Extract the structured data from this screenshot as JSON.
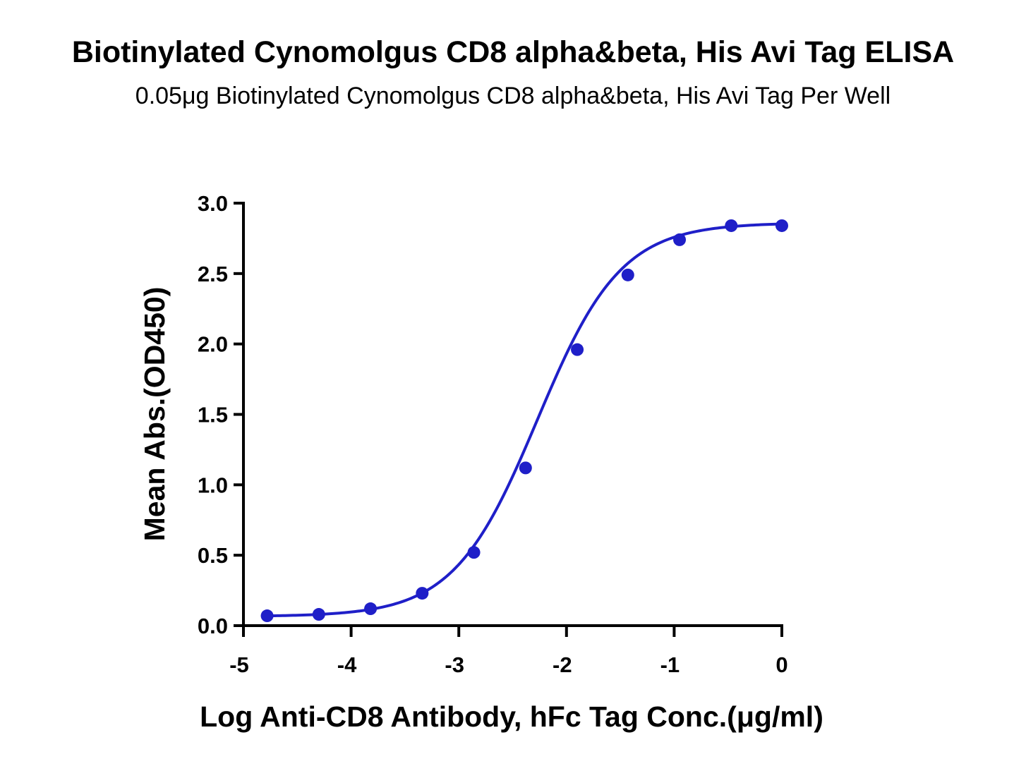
{
  "chart_data": {
    "type": "scatter",
    "title": "Biotinylated Cynomolgus CD8 alpha&beta, His Avi Tag ELISA",
    "subtitle": "0.05μg Biotinylated Cynomolgus CD8 alpha&beta, His Avi Tag Per Well",
    "xlabel": "Log Anti-CD8 Antibody, hFc Tag Conc.(μg/ml)",
    "ylabel": "Mean Abs.(OD450)",
    "xlim": [
      -5,
      0
    ],
    "ylim": [
      0,
      3.0
    ],
    "x_ticks": [
      "-5",
      "-4",
      "-3",
      "-2",
      "-1",
      "0"
    ],
    "y_ticks": [
      "0.0",
      "0.5",
      "1.0",
      "1.5",
      "2.0",
      "2.5",
      "3.0"
    ],
    "grid": false,
    "legend": "none",
    "color": "#1f1fc8",
    "series": [
      {
        "x": [
          -4.78,
          -4.3,
          -3.82,
          -3.34,
          -2.86,
          -2.38,
          -1.9,
          -1.43,
          -0.95,
          -0.47,
          0.0
        ],
        "y": [
          0.07,
          0.08,
          0.12,
          0.23,
          0.52,
          1.12,
          1.96,
          2.49,
          2.74,
          2.84,
          2.84
        ],
        "fit": "4PL sigmoid",
        "fit_params": {
          "bottom": 0.065,
          "top": 2.86,
          "logEC50": -2.27,
          "hill": 1.12
        }
      }
    ]
  }
}
